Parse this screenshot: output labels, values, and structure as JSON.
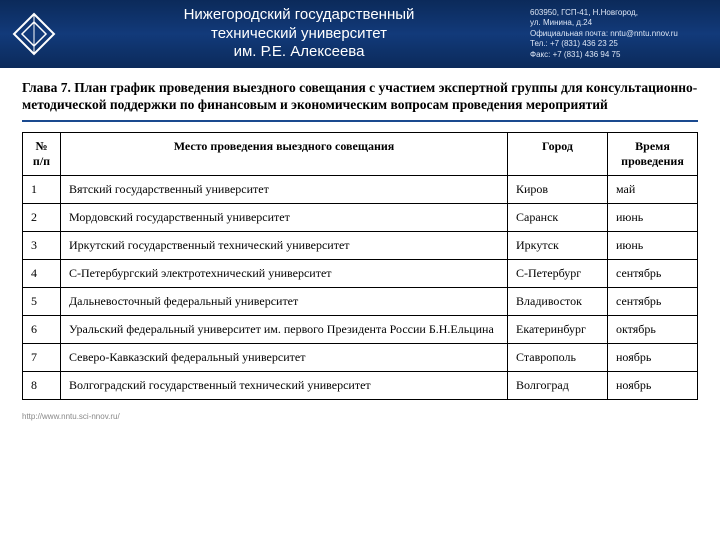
{
  "header": {
    "university_line1": "Нижегородский государственный",
    "university_line2": "технический университет",
    "university_line3": "им. Р.Е. Алексеева",
    "contact_line1": "603950, ГСП-41, Н.Новгород,",
    "contact_line2": "ул. Минина, д.24",
    "contact_line3": "Официальная почта: nntu@nntu.nnov.ru",
    "contact_line4": "Тел.: +7 (831) 436 23 25",
    "contact_line5": "Факс: +7 (831) 436 94 75"
  },
  "chapter_title": "Глава 7.  План график проведения выездного совещания с участием экспертной группы для консультационно-методической поддержки по финансовым и экономическим вопросам проведения мероприятий",
  "table": {
    "columns": [
      "№ п/п",
      "Место проведения выездного совещания",
      "Город",
      "Время проведения"
    ],
    "rows": [
      [
        "1",
        "Вятский государственный  университет",
        "Киров",
        "май"
      ],
      [
        "2",
        "Мордовский государственный университет",
        "Саранск",
        "июнь"
      ],
      [
        "3",
        "Иркутский государственный технический университет",
        "Иркутск",
        "июнь"
      ],
      [
        "4",
        "С-Петербургский электротехнический университет",
        "С-Петербург",
        "сентябрь"
      ],
      [
        "5",
        "Дальневосточный федеральный  университет",
        "Владивосток",
        "сентябрь"
      ],
      [
        "6",
        "Уральский федеральный университет им. первого Президента России Б.Н.Ельцина",
        "Екатеринбург",
        "октябрь"
      ],
      [
        "7",
        "Северо-Кавказский федеральный университет",
        "Ставрополь",
        "ноябрь"
      ],
      [
        "8",
        "Волгоградский государственный технический университет",
        "Волгоград",
        "ноябрь"
      ]
    ]
  },
  "footer_url": "http://www.nntu.sci-nnov.ru/"
}
